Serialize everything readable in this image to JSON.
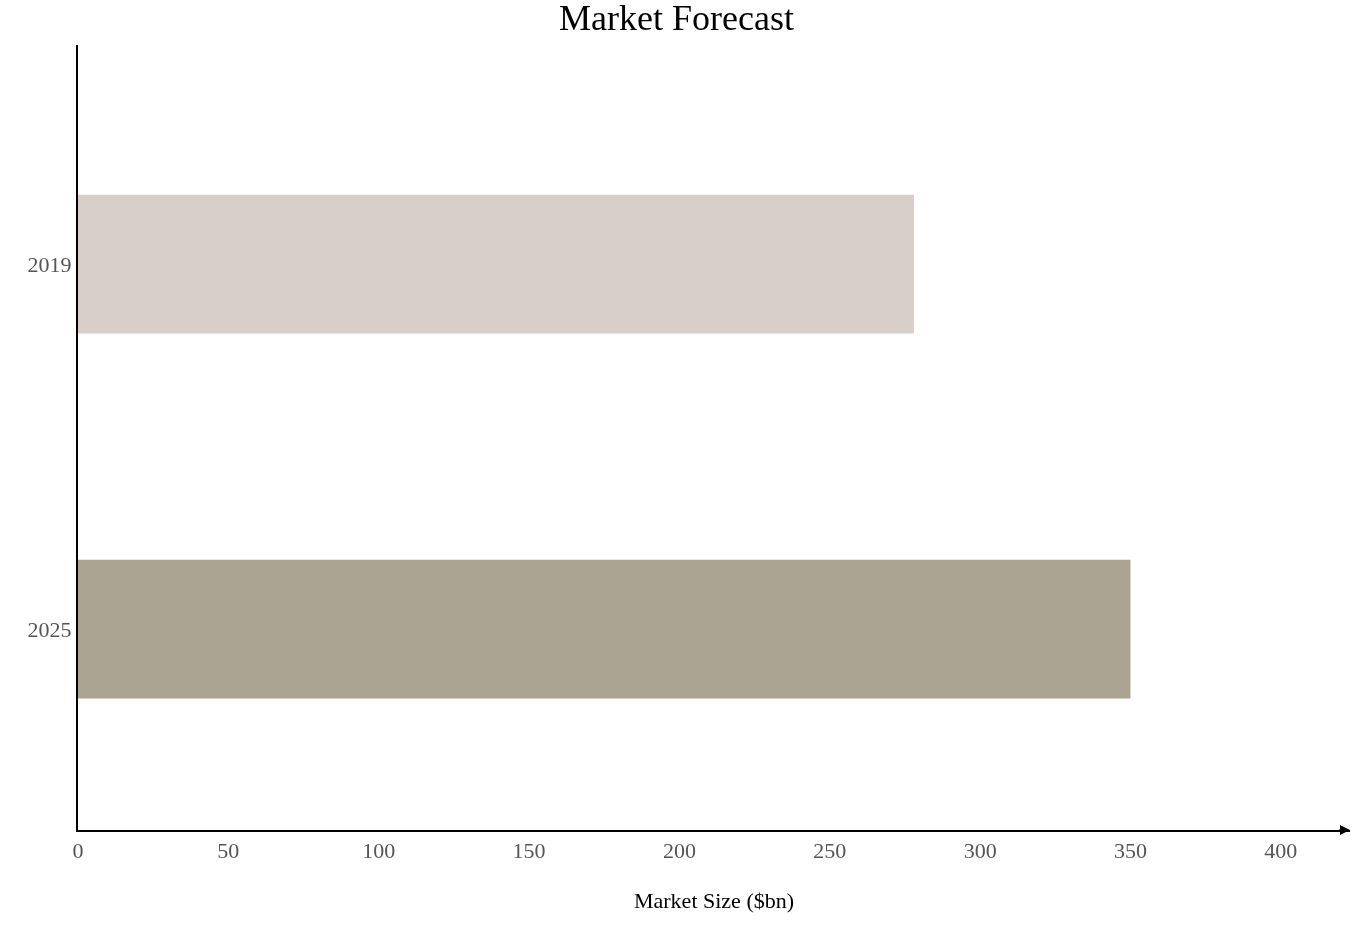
{
  "chart_data": {
    "type": "bar",
    "orientation": "horizontal",
    "title": "Market Forecast",
    "xlabel": "Market Size ($bn)",
    "categories": [
      "2019",
      "2025"
    ],
    "values": [
      278,
      350
    ],
    "colors": [
      "#d8cfca",
      "#aba493"
    ],
    "xlim": [
      0,
      423
    ],
    "xticks": [
      0,
      50,
      100,
      150,
      200,
      250,
      300,
      350,
      400
    ],
    "legend": false
  }
}
